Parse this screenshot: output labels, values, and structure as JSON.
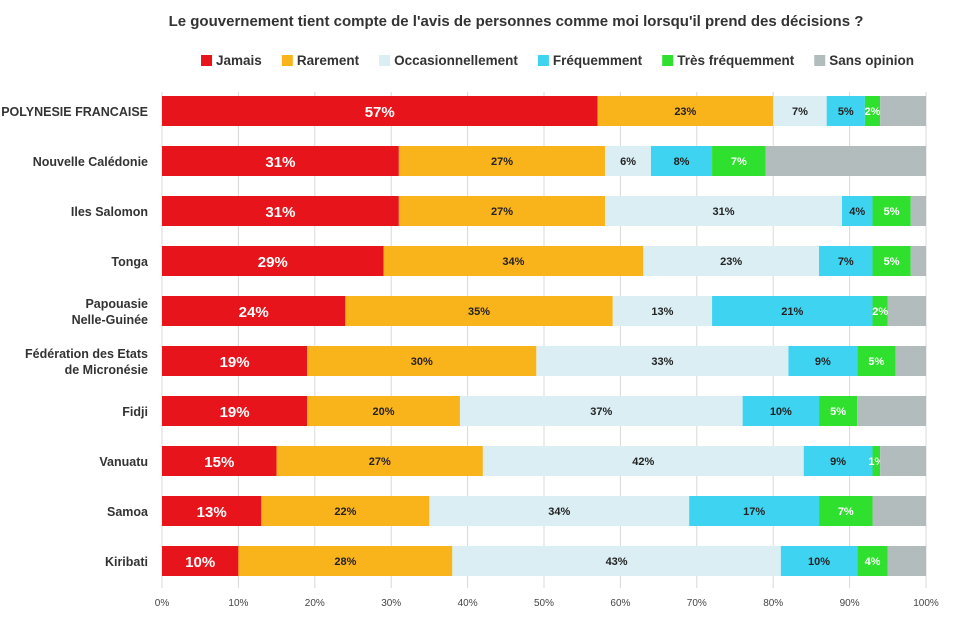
{
  "chart_data": {
    "type": "bar",
    "orientation": "horizontal",
    "stacked": true,
    "title": "Le gouvernement tient compte de l'avis de personnes comme moi lorsqu'il prend des décisions ?",
    "xlim": [
      0,
      100
    ],
    "x_ticks": [
      "0%",
      "10%",
      "20%",
      "30%",
      "40%",
      "50%",
      "60%",
      "70%",
      "80%",
      "90%",
      "100%"
    ],
    "grid": true,
    "legend_position": "top",
    "categories": [
      "POLYNESIE FRANCAISE",
      "Nouvelle Calédonie",
      "Iles Salomon",
      "Tonga",
      "Papouasie Nelle-Guinée",
      "Fédération des Etats de Micronésie",
      "Fidji",
      "Vanuatu",
      "Samoa",
      "Kiribati"
    ],
    "category_lines": [
      [
        "POLYNESIE FRANCAISE"
      ],
      [
        "Nouvelle Calédonie"
      ],
      [
        "Iles Salomon"
      ],
      [
        "Tonga"
      ],
      [
        "Papouasie",
        "Nelle-Guinée"
      ],
      [
        "Fédération des Etats",
        "de Micronésie"
      ],
      [
        "Fidji"
      ],
      [
        "Vanuatu"
      ],
      [
        "Samoa"
      ],
      [
        "Kiribati"
      ]
    ],
    "series": [
      {
        "name": "Jamais",
        "color": "#e8141b",
        "label_color": "#ffffff",
        "values": [
          57,
          31,
          31,
          29,
          24,
          19,
          19,
          15,
          13,
          10
        ],
        "labels": [
          "57%",
          "31%",
          "31%",
          "29%",
          "24%",
          "19%",
          "19%",
          "15%",
          "13%",
          "10%"
        ]
      },
      {
        "name": "Rarement",
        "color": "#f9b31b",
        "label_color": "#222222",
        "values": [
          23,
          27,
          27,
          34,
          35,
          30,
          20,
          27,
          22,
          28
        ],
        "labels": [
          "23%",
          "27%",
          "27%",
          "34%",
          "35%",
          "30%",
          "20%",
          "27%",
          "22%",
          "28%"
        ]
      },
      {
        "name": "Occasionnellement",
        "color": "#daeef3",
        "label_color": "#222222",
        "values": [
          7,
          6,
          31,
          23,
          13,
          33,
          37,
          42,
          34,
          43
        ],
        "labels": [
          "7%",
          "6%",
          "31%",
          "23%",
          "13%",
          "33%",
          "37%",
          "42%",
          "34%",
          "43%"
        ]
      },
      {
        "name": "Fréquemment",
        "color": "#3ed3f0",
        "label_color": "#222222",
        "values": [
          5,
          8,
          4,
          7,
          21,
          9,
          10,
          9,
          17,
          10
        ],
        "labels": [
          "5%",
          "8%",
          "4%",
          "7%",
          "21%",
          "9%",
          "10%",
          "9%",
          "17%",
          "10%"
        ]
      },
      {
        "name": "Très fréquemment",
        "color": "#2fe02f",
        "label_color": "#ffffff",
        "values": [
          2,
          7,
          5,
          5,
          2,
          5,
          5,
          1,
          7,
          4
        ],
        "labels": [
          "2%",
          "7%",
          "5%",
          "5%",
          "2%",
          "5%",
          "5%",
          "1%",
          "7%",
          "4%"
        ]
      },
      {
        "name": "Sans opinion",
        "color": "#b3bcbd",
        "label_color": "#222222",
        "values": [
          6,
          21,
          2,
          2,
          5,
          4,
          9,
          6,
          7,
          5
        ],
        "labels": [
          "",
          "",
          "",
          "",
          "",
          "",
          "",
          "",
          "",
          ""
        ]
      }
    ]
  }
}
